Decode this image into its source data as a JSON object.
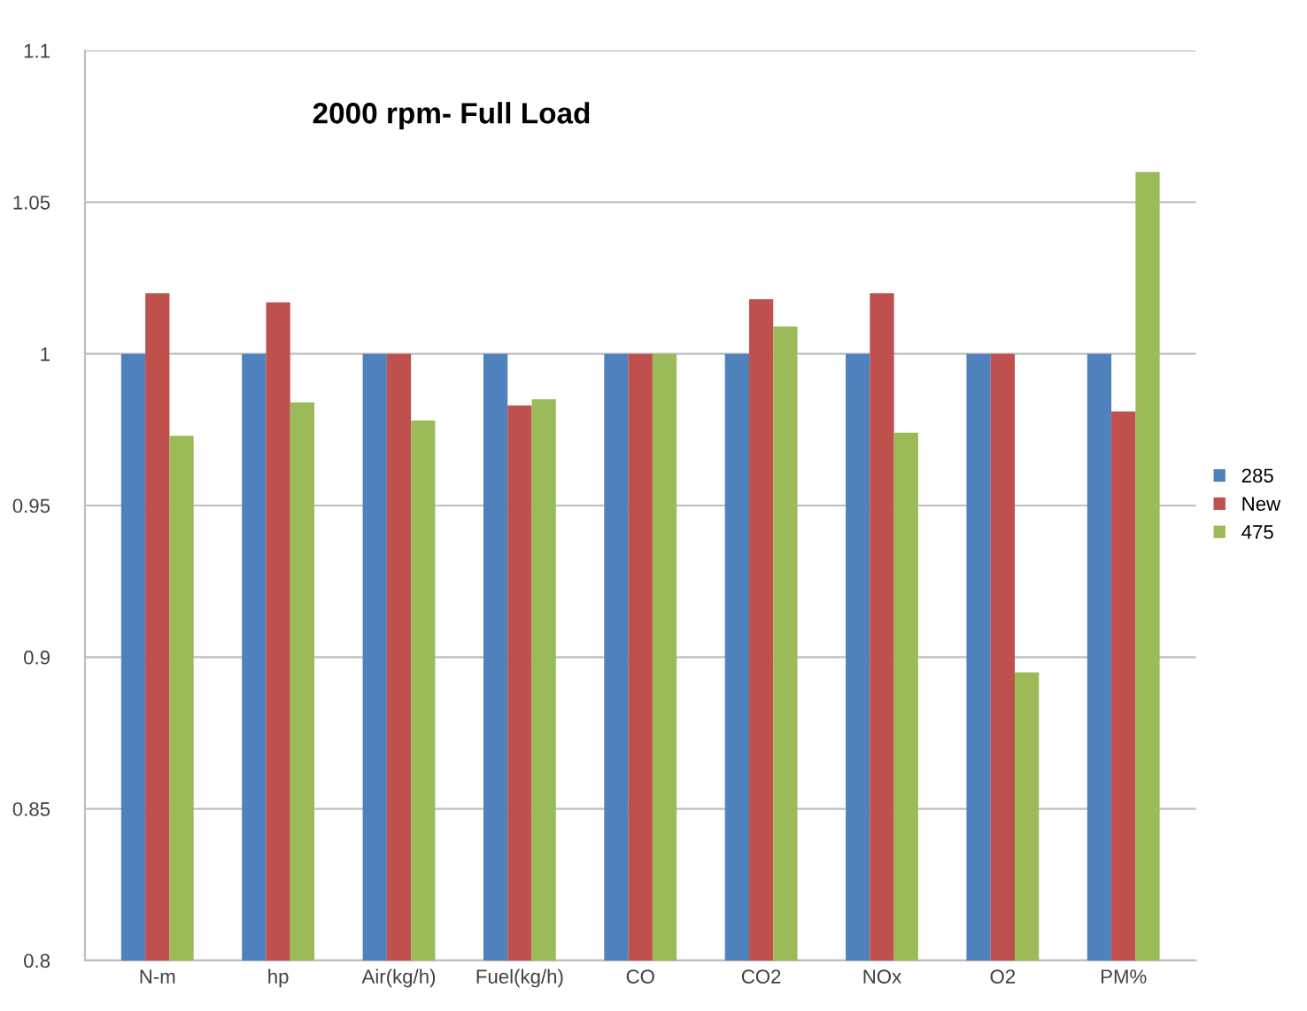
{
  "chart_data": {
    "type": "bar",
    "title": "2000 rpm- Full Load",
    "categories": [
      "N-m",
      "hp",
      "Air(kg/h)",
      "Fuel(kg/h)",
      "CO",
      "CO2",
      "NOx",
      "O2",
      "PM%"
    ],
    "series": [
      {
        "name": "285",
        "color": "#4f81bd",
        "values": [
          1,
          1,
          1,
          1,
          1,
          1,
          1,
          1,
          1
        ]
      },
      {
        "name": "New",
        "color": "#c0504d",
        "values": [
          1.02,
          1.017,
          1,
          0.983,
          1,
          1.018,
          1.02,
          1,
          0.981
        ]
      },
      {
        "name": "475",
        "color": "#9bbb59",
        "values": [
          0.973,
          0.984,
          0.978,
          0.985,
          1,
          1.009,
          0.974,
          0.895,
          1.06
        ]
      }
    ],
    "ylim": [
      0.8,
      1.1
    ],
    "yticks": [
      {
        "value": 0.8,
        "label": "0.8"
      },
      {
        "value": 0.85,
        "label": "0.85"
      },
      {
        "value": 0.9,
        "label": "0.9"
      },
      {
        "value": 0.95,
        "label": "0.95"
      },
      {
        "value": 1,
        "label": "1"
      },
      {
        "value": 1.05,
        "label": "1.05"
      },
      {
        "value": 1.1,
        "label": "1.1"
      }
    ],
    "grid": "y",
    "legend": "right"
  }
}
